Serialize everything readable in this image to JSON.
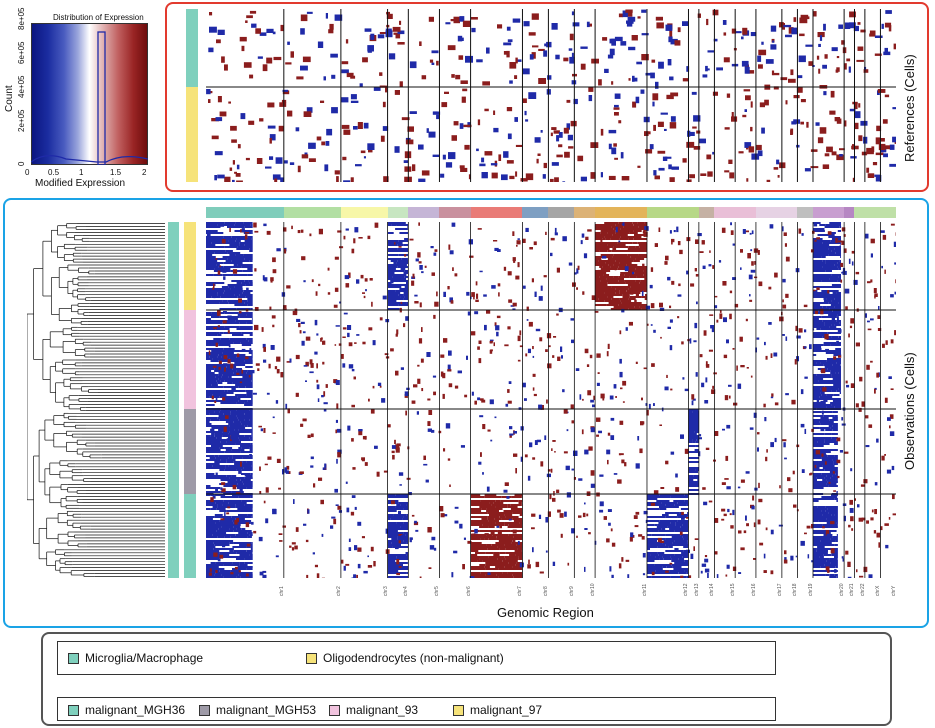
{
  "color_key": {
    "title": "Distribution of Expression",
    "xlabel": "Modified Expression",
    "ylabel": "Count",
    "x_ticks": [
      "0",
      "0.5",
      "1",
      "1.5",
      "2"
    ],
    "y_ticks": [
      "0",
      "2e+05",
      "4e+05",
      "6e+05",
      "8e+05"
    ]
  },
  "references_panel": {
    "label": "References (Cells)"
  },
  "observations_panel": {
    "label": "Observations (Cells)",
    "xlabel": "Genomic Region"
  },
  "chromosomes": [
    "chr1",
    "chr2",
    "chr3",
    "chr4",
    "chr5",
    "chr6",
    "chr7",
    "chr8",
    "chr9",
    "chr10",
    "chr11",
    "chr12",
    "chr13",
    "chr14",
    "chr15",
    "chr16",
    "chr17",
    "chr18",
    "chr19",
    "chr20",
    "chr21",
    "chr22",
    "chrX",
    "chrY"
  ],
  "chromosome_weights": [
    15,
    11,
    9,
    4,
    6,
    6,
    10,
    5,
    5,
    4,
    10,
    8,
    2,
    3,
    4,
    4,
    5,
    3,
    3,
    6,
    2,
    2,
    3,
    3
  ],
  "chromosome_colors": [
    "#7fcdbb",
    "#b2dfa3",
    "#f7f7a8",
    "#c7e6c1",
    "#c5b5d6",
    "#c9909e",
    "#e97b77",
    "#7e9fc2",
    "#a5a5a5",
    "#dcb276",
    "#e3b45a",
    "#b7d887",
    "#b7d887",
    "#c5b1a4",
    "#e9bfd7",
    "#e9bfd7",
    "#e6d2e4",
    "#e6d2e4",
    "#bfbfbf",
    "#c89ed0",
    "#b687c3",
    "#bfe0a7",
    "#bfe0a7",
    "#bfe0a7"
  ],
  "legend": {
    "reference_groups": [
      {
        "label": "Microglia/Macrophage",
        "color": "#7fd0bd"
      },
      {
        "label": "Oligodendrocytes (non-malignant)",
        "color": "#f6e37a"
      }
    ],
    "observation_groups": [
      {
        "label": "malignant_MGH36",
        "color": "#7fd0bd"
      },
      {
        "label": "malignant_MGH53",
        "color": "#9e9aa7"
      },
      {
        "label": "malignant_93",
        "color": "#f1c3de"
      },
      {
        "label": "malignant_97",
        "color": "#f6e37a"
      }
    ]
  },
  "colors": {
    "gain": "#8b1d1d",
    "loss": "#1f2aa8",
    "ref_frame": "#e23a2e",
    "obs_frame": "#1aa3e6",
    "legend_frame": "#555555"
  }
}
